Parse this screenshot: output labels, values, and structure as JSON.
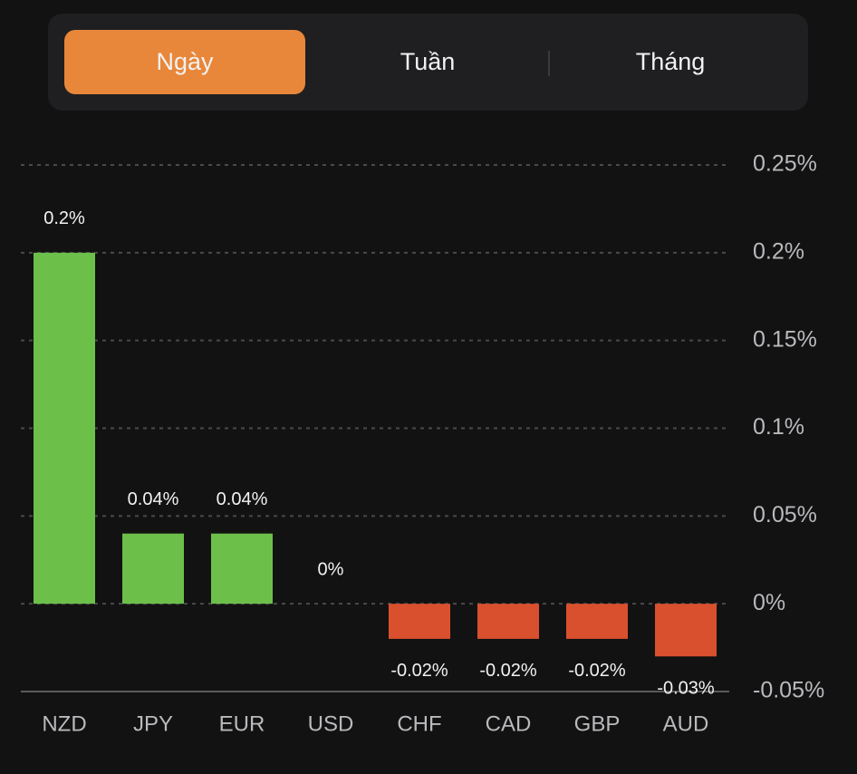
{
  "tabs": [
    "Ngày",
    "Tuần",
    "Tháng"
  ],
  "chart_data": {
    "type": "bar",
    "categories": [
      "NZD",
      "JPY",
      "EUR",
      "USD",
      "CHF",
      "CAD",
      "GBP",
      "AUD"
    ],
    "values": [
      0.2,
      0.04,
      0.04,
      0,
      -0.02,
      -0.02,
      -0.02,
      -0.03
    ],
    "value_labels": [
      "0.2%",
      "0.04%",
      "0.04%",
      "0%",
      "-0.02%",
      "-0.02%",
      "-0.02%",
      "-0.03%"
    ],
    "positive_color": "#6cc04a",
    "negative_color": "#d9502e",
    "ylim": [
      -0.05,
      0.25
    ],
    "yticks": [
      {
        "value": 0.25,
        "label": "0.25%"
      },
      {
        "value": 0.2,
        "label": "0.2%"
      },
      {
        "value": 0.15,
        "label": "0.15%"
      },
      {
        "value": 0.1,
        "label": "0.1%"
      },
      {
        "value": 0.05,
        "label": "0.05%"
      },
      {
        "value": 0,
        "label": "0%"
      },
      {
        "value": -0.05,
        "label": "-0.05%"
      }
    ],
    "grid": true
  }
}
